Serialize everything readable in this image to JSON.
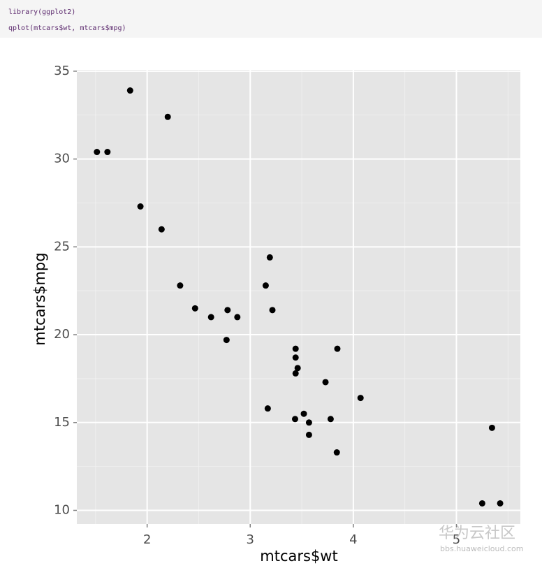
{
  "code": [
    "library(ggplot2)",
    "qplot(mtcars$wt, mtcars$mpg)"
  ],
  "watermark": {
    "title": "华为云社区",
    "url": "bbs.huaweicloud.com"
  },
  "chart_data": {
    "type": "scatter",
    "xlabel": "mtcars$wt",
    "ylabel": "mtcars$mpg",
    "x": [
      2.62,
      2.875,
      2.32,
      3.215,
      3.44,
      3.46,
      3.57,
      3.19,
      3.15,
      3.44,
      3.44,
      4.07,
      3.73,
      3.78,
      5.25,
      5.424,
      5.345,
      2.2,
      1.615,
      1.835,
      2.465,
      3.52,
      3.435,
      3.84,
      3.845,
      1.935,
      2.14,
      1.513,
      3.17,
      2.77,
      3.57,
      2.78
    ],
    "values": [
      21.0,
      21.0,
      22.8,
      21.4,
      18.7,
      18.1,
      14.3,
      24.4,
      22.8,
      19.2,
      17.8,
      16.4,
      17.3,
      15.2,
      10.4,
      10.4,
      14.7,
      32.4,
      30.4,
      33.9,
      21.5,
      15.5,
      15.2,
      13.3,
      19.2,
      27.3,
      26.0,
      30.4,
      15.8,
      19.7,
      15.0,
      21.4
    ],
    "color": "#000000",
    "xlim": [
      1.318,
      5.62
    ],
    "ylim": [
      9.225,
      35.075
    ],
    "xticks": [
      2,
      3,
      4,
      5
    ],
    "yticks": [
      10,
      15,
      20,
      25,
      30,
      35
    ],
    "grid": true,
    "minor_grid": true
  }
}
